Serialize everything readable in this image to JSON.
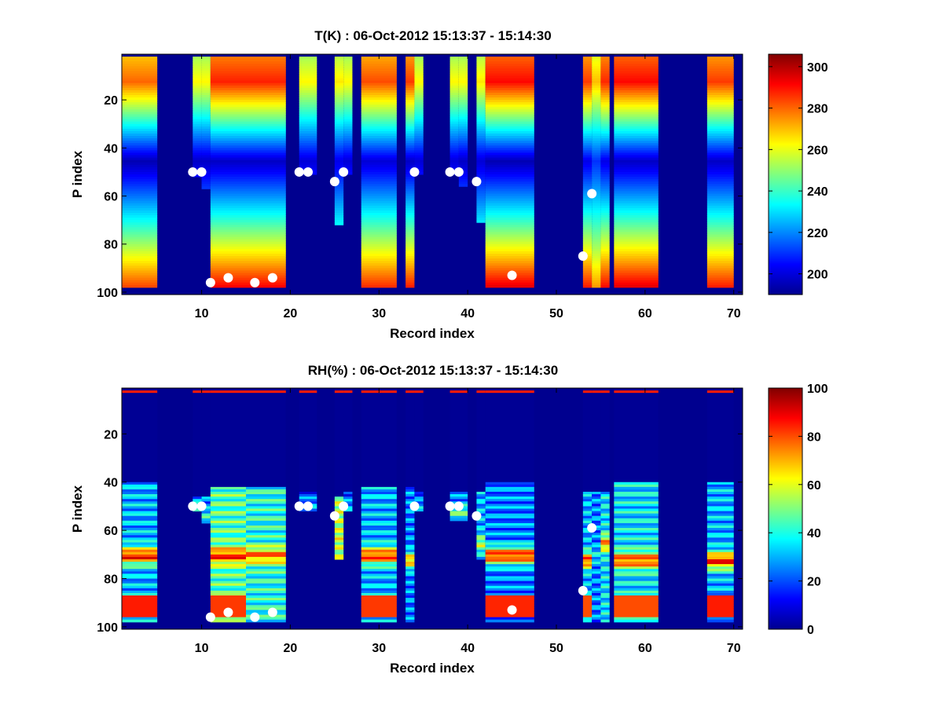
{
  "chart_data": [
    {
      "type": "heatmap",
      "title": "T(K) : 06-Oct-2012 15:13:37 - 15:14:30",
      "xlabel": "Record index",
      "ylabel": "P index",
      "xlim": [
        1,
        71
      ],
      "ylim": [
        1,
        101
      ],
      "y_reversed": true,
      "xticks": [
        10,
        20,
        30,
        40,
        50,
        60,
        70
      ],
      "yticks": [
        20,
        40,
        60,
        80,
        100
      ],
      "colorbar": {
        "ticks": [
          200,
          220,
          240,
          260,
          280,
          300
        ],
        "range": [
          190,
          306
        ],
        "colormap": "jet"
      },
      "profiles": [
        {
          "x": [
            1,
            5
          ],
          "top": 2,
          "bottom": 98,
          "tmin": 196,
          "tmax": 285
        },
        {
          "x": [
            9,
            10
          ],
          "top": 2,
          "bottom": 52,
          "tmin": 198,
          "tmax": 268
        },
        {
          "x": [
            10,
            11
          ],
          "top": 2,
          "bottom": 57,
          "tmin": 198,
          "tmax": 268
        },
        {
          "x": [
            11,
            15
          ],
          "top": 2,
          "bottom": 98,
          "tmin": 198,
          "tmax": 293
        },
        {
          "x": [
            15,
            19.5
          ],
          "top": 2,
          "bottom": 98,
          "tmin": 198,
          "tmax": 293
        },
        {
          "x": [
            21,
            22
          ],
          "top": 2,
          "bottom": 51,
          "tmin": 200,
          "tmax": 268
        },
        {
          "x": [
            22,
            23
          ],
          "top": 2,
          "bottom": 51,
          "tmin": 200,
          "tmax": 268
        },
        {
          "x": [
            25,
            26
          ],
          "top": 2,
          "bottom": 72,
          "tmin": 202,
          "tmax": 270
        },
        {
          "x": [
            26,
            27
          ],
          "top": 2,
          "bottom": 51,
          "tmin": 200,
          "tmax": 268
        },
        {
          "x": [
            28,
            32
          ],
          "top": 2,
          "bottom": 98,
          "tmin": 200,
          "tmax": 288
        },
        {
          "x": [
            33,
            34
          ],
          "top": 2,
          "bottom": 98,
          "tmin": 198,
          "tmax": 290
        },
        {
          "x": [
            34,
            35
          ],
          "top": 2,
          "bottom": 51,
          "tmin": 200,
          "tmax": 268
        },
        {
          "x": [
            38,
            39
          ],
          "top": 2,
          "bottom": 51,
          "tmin": 200,
          "tmax": 268
        },
        {
          "x": [
            39,
            40
          ],
          "top": 2,
          "bottom": 56,
          "tmin": 198,
          "tmax": 268
        },
        {
          "x": [
            41,
            42
          ],
          "top": 2,
          "bottom": 71,
          "tmin": 200,
          "tmax": 270
        },
        {
          "x": [
            42,
            47.5
          ],
          "top": 2,
          "bottom": 98,
          "tmin": 196,
          "tmax": 296
        },
        {
          "x": [
            53,
            54
          ],
          "top": 2,
          "bottom": 98,
          "tmin": 202,
          "tmax": 290
        },
        {
          "x": [
            54,
            55
          ],
          "top": 2,
          "bottom": 98,
          "tmin": 210,
          "tmax": 275
        },
        {
          "x": [
            55,
            56
          ],
          "top": 2,
          "bottom": 98,
          "tmin": 202,
          "tmax": 292
        },
        {
          "x": [
            56.5,
            61.5
          ],
          "top": 2,
          "bottom": 98,
          "tmin": 198,
          "tmax": 296
        },
        {
          "x": [
            67,
            70
          ],
          "top": 2,
          "bottom": 98,
          "tmin": 198,
          "tmax": 290
        }
      ],
      "markers": [
        {
          "x": 9,
          "y": 50
        },
        {
          "x": 10,
          "y": 50
        },
        {
          "x": 11,
          "y": 96
        },
        {
          "x": 13,
          "y": 94
        },
        {
          "x": 16,
          "y": 96
        },
        {
          "x": 18,
          "y": 94
        },
        {
          "x": 21,
          "y": 50
        },
        {
          "x": 22,
          "y": 50
        },
        {
          "x": 25,
          "y": 54
        },
        {
          "x": 26,
          "y": 50
        },
        {
          "x": 34,
          "y": 50
        },
        {
          "x": 38,
          "y": 50
        },
        {
          "x": 39,
          "y": 50
        },
        {
          "x": 41,
          "y": 54
        },
        {
          "x": 45,
          "y": 93
        },
        {
          "x": 53,
          "y": 85
        },
        {
          "x": 54,
          "y": 59
        }
      ]
    },
    {
      "type": "heatmap",
      "title": "RH(%) : 06-Oct-2012 15:13:37 - 15:14:30",
      "xlabel": "Record index",
      "ylabel": "P index",
      "xlim": [
        1,
        71
      ],
      "ylim": [
        1,
        101
      ],
      "y_reversed": true,
      "xticks": [
        10,
        20,
        30,
        40,
        50,
        60,
        70
      ],
      "yticks": [
        20,
        40,
        60,
        80,
        100
      ],
      "colorbar": {
        "ticks": [
          0,
          20,
          40,
          60,
          80,
          100
        ],
        "range": [
          0,
          100
        ],
        "colormap": "jet"
      },
      "profiles": [
        {
          "x": [
            1,
            5
          ],
          "top": 2,
          "bottom": 98,
          "rh_start": 40,
          "peak_at": 70,
          "peak": 85,
          "mid": 30
        },
        {
          "x": [
            9,
            10
          ],
          "top": 2,
          "bottom": 52,
          "rh_start": 46,
          "peak_at": 50,
          "peak": 35,
          "mid": 25
        },
        {
          "x": [
            10,
            11
          ],
          "top": 2,
          "bottom": 57,
          "rh_start": 46,
          "peak_at": 54,
          "peak": 40,
          "mid": 25
        },
        {
          "x": [
            11,
            15
          ],
          "top": 2,
          "bottom": 98,
          "rh_start": 42,
          "peak_at": 70,
          "peak": 82,
          "mid": 45
        },
        {
          "x": [
            15,
            19.5
          ],
          "top": 2,
          "bottom": 98,
          "rh_start": 42,
          "peak_at": 70,
          "peak": 75,
          "mid": 40
        },
        {
          "x": [
            21,
            23
          ],
          "top": 2,
          "bottom": 52,
          "rh_start": 44,
          "peak_at": 50,
          "peak": 30,
          "mid": 20
        },
        {
          "x": [
            25,
            26
          ],
          "top": 2,
          "bottom": 72,
          "rh_start": 46,
          "peak_at": 62,
          "peak": 58,
          "mid": 55
        },
        {
          "x": [
            26,
            27
          ],
          "top": 2,
          "bottom": 52,
          "rh_start": 44,
          "peak_at": 50,
          "peak": 30,
          "mid": 20
        },
        {
          "x": [
            28,
            32
          ],
          "top": 2,
          "bottom": 98,
          "rh_start": 42,
          "peak_at": 70,
          "peak": 82,
          "mid": 30
        },
        {
          "x": [
            33,
            34
          ],
          "top": 2,
          "bottom": 98,
          "rh_start": 42,
          "peak_at": 72,
          "peak": 70,
          "mid": 25
        },
        {
          "x": [
            34,
            35
          ],
          "top": 2,
          "bottom": 52,
          "rh_start": 44,
          "peak_at": 50,
          "peak": 30,
          "mid": 20
        },
        {
          "x": [
            38,
            40
          ],
          "top": 2,
          "bottom": 56,
          "rh_start": 44,
          "peak_at": 52,
          "peak": 45,
          "mid": 25
        },
        {
          "x": [
            41,
            42
          ],
          "top": 2,
          "bottom": 72,
          "rh_start": 44,
          "peak_at": 65,
          "peak": 55,
          "mid": 30
        },
        {
          "x": [
            42,
            47.5
          ],
          "top": 2,
          "bottom": 98,
          "rh_start": 40,
          "peak_at": 70,
          "peak": 84,
          "mid": 25
        },
        {
          "x": [
            53,
            54
          ],
          "top": 2,
          "bottom": 98,
          "rh_start": 44,
          "peak_at": 72,
          "peak": 80,
          "mid": 30
        },
        {
          "x": [
            54,
            55
          ],
          "top": 2,
          "bottom": 98,
          "rh_start": 44,
          "peak_at": 70,
          "peak": 35,
          "mid": 25
        },
        {
          "x": [
            55,
            56
          ],
          "top": 2,
          "bottom": 98,
          "rh_start": 44,
          "peak_at": 65,
          "peak": 72,
          "mid": 35
        },
        {
          "x": [
            56.5,
            61.5
          ],
          "top": 2,
          "bottom": 98,
          "rh_start": 40,
          "peak_at": 72,
          "peak": 80,
          "mid": 35
        },
        {
          "x": [
            67,
            70
          ],
          "top": 2,
          "bottom": 98,
          "rh_start": 40,
          "peak_at": 72,
          "peak": 85,
          "mid": 30
        }
      ],
      "markers": [
        {
          "x": 9,
          "y": 50
        },
        {
          "x": 10,
          "y": 50
        },
        {
          "x": 11,
          "y": 96
        },
        {
          "x": 13,
          "y": 94
        },
        {
          "x": 16,
          "y": 96
        },
        {
          "x": 18,
          "y": 94
        },
        {
          "x": 21,
          "y": 50
        },
        {
          "x": 22,
          "y": 50
        },
        {
          "x": 25,
          "y": 54
        },
        {
          "x": 26,
          "y": 50
        },
        {
          "x": 34,
          "y": 50
        },
        {
          "x": 38,
          "y": 50
        },
        {
          "x": 39,
          "y": 50
        },
        {
          "x": 41,
          "y": 54
        },
        {
          "x": 45,
          "y": 93
        },
        {
          "x": 53,
          "y": 85
        },
        {
          "x": 54,
          "y": 59
        }
      ]
    }
  ]
}
